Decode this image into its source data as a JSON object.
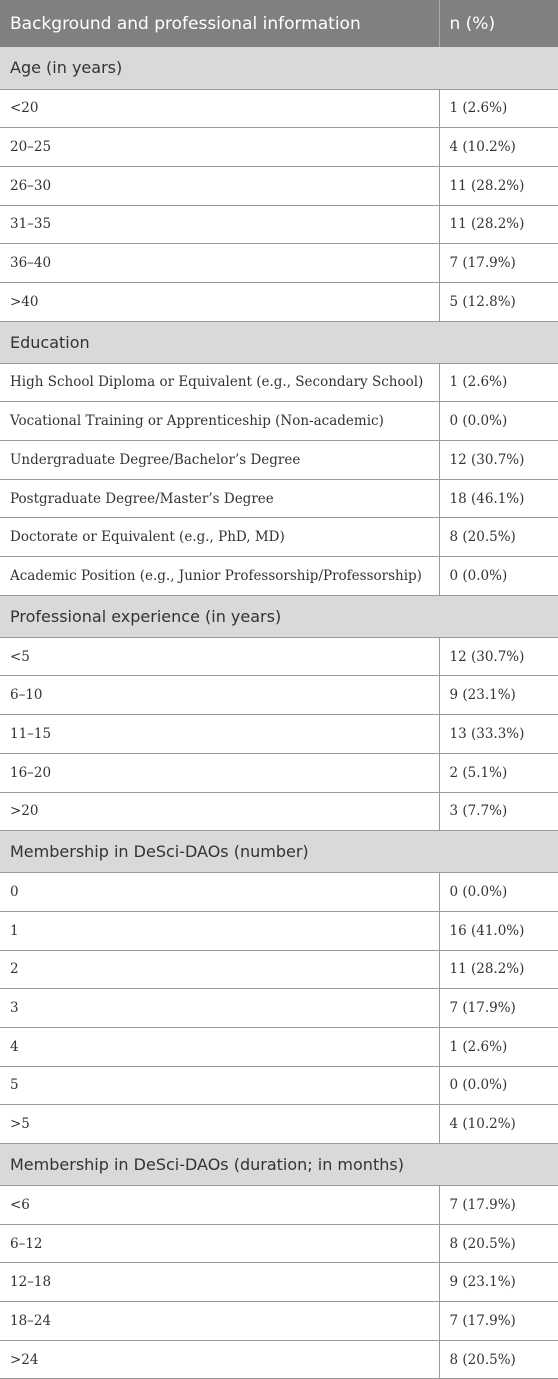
{
  "header": {
    "col1": "Background and professional information",
    "col2": "n (%)"
  },
  "sections": [
    {
      "title": "Age (in years)",
      "rows": [
        {
          "label": "<20",
          "value": "1 (2.6%)"
        },
        {
          "label": "20–25",
          "value": "4 (10.2%)"
        },
        {
          "label": "26–30",
          "value": "11 (28.2%)"
        },
        {
          "label": "31–35",
          "value": "11 (28.2%)"
        },
        {
          "label": "36–40",
          "value": "7 (17.9%)"
        },
        {
          "label": ">40",
          "value": "5 (12.8%)"
        }
      ]
    },
    {
      "title": "Education",
      "rows": [
        {
          "label": "High School Diploma or Equivalent (e.g., Secondary School)",
          "value": "1 (2.6%)"
        },
        {
          "label": "Vocational Training or Apprenticeship (Non-academic)",
          "value": "0 (0.0%)"
        },
        {
          "label": "Undergraduate Degree/Bachelor’s Degree",
          "value": "12 (30.7%)"
        },
        {
          "label": "Postgraduate Degree/Master’s Degree",
          "value": "18 (46.1%)"
        },
        {
          "label": "Doctorate or Equivalent (e.g., PhD, MD)",
          "value": "8 (20.5%)"
        },
        {
          "label": "Academic Position (e.g., Junior Professorship/Professorship)",
          "value": "0 (0.0%)"
        }
      ]
    },
    {
      "title": "Professional experience (in years)",
      "rows": [
        {
          "label": "<5",
          "value": "12 (30.7%)"
        },
        {
          "label": "6–10",
          "value": "9 (23.1%)"
        },
        {
          "label": "11–15",
          "value": "13 (33.3%)"
        },
        {
          "label": "16–20",
          "value": "2 (5.1%)"
        },
        {
          "label": ">20",
          "value": "3 (7.7%)"
        }
      ]
    },
    {
      "title": "Membership in DeSci-DAOs (number)",
      "rows": [
        {
          "label": "0",
          "value": "0 (0.0%)"
        },
        {
          "label": "1",
          "value": "16 (41.0%)"
        },
        {
          "label": "2",
          "value": "11 (28.2%)"
        },
        {
          "label": "3",
          "value": "7 (17.9%)"
        },
        {
          "label": "4",
          "value": "1 (2.6%)"
        },
        {
          "label": "5",
          "value": "0 (0.0%)"
        },
        {
          "label": ">5",
          "value": "4 (10.2%)"
        }
      ]
    },
    {
      "title": "Membership in DeSci-DAOs (duration; in months)",
      "rows": [
        {
          "label": "<6",
          "value": "7 (17.9%)"
        },
        {
          "label": "6–12",
          "value": "8 (20.5%)"
        },
        {
          "label": "12–18",
          "value": "9 (23.1%)"
        },
        {
          "label": "18–24",
          "value": "7 (17.9%)"
        },
        {
          "label": ">24",
          "value": "8 (20.5%)"
        }
      ]
    }
  ]
}
